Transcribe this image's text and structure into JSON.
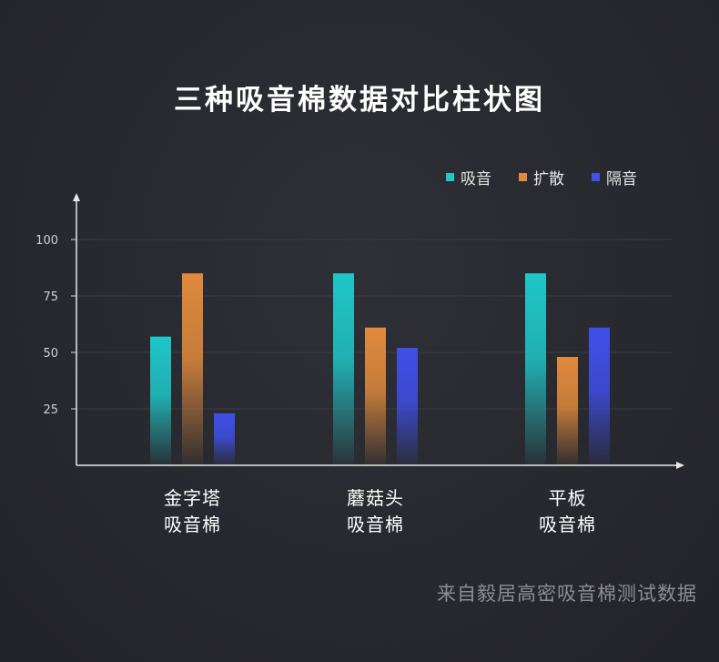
{
  "chart_data": {
    "type": "bar",
    "title": "三种吸音棉数据对比柱状图",
    "categories": [
      [
        "金字塔",
        "吸音棉"
      ],
      [
        "蘑菇头",
        "吸音棉"
      ],
      [
        "平板",
        "吸音棉"
      ]
    ],
    "series": [
      {
        "name": "吸音",
        "color": "#1fc6c8",
        "values": [
          57,
          85,
          85
        ]
      },
      {
        "name": "扩散",
        "color": "#e08a3c",
        "values": [
          85,
          61,
          48
        ]
      },
      {
        "name": "隔音",
        "color": "#3f4fe8",
        "values": [
          23,
          52,
          61
        ]
      }
    ],
    "yticks": [
      "25",
      "50",
      "75",
      "100"
    ],
    "ylim": [
      0,
      125
    ],
    "grid": true,
    "legend_position": "top-right",
    "source_note": "来自毅居高密吸音棉测试数据"
  }
}
